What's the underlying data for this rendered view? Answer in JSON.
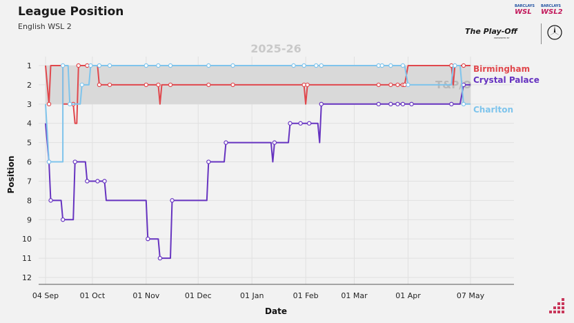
{
  "header": {
    "title": "League Position",
    "subtitle": "English WSL 2"
  },
  "logos": {
    "wsl": "WSL",
    "wsl2": "WSL2",
    "sponsor": "BARCLAYS",
    "playoff": "The Play-Off",
    "playoff_sub": "PRESENTED BY"
  },
  "colors": {
    "birmingham": "#e0474c",
    "crystal_palace": "#6633c0",
    "charlton": "#7ec4ec",
    "background": "#f2f2f2",
    "band": "#d9d9d9"
  },
  "chart_data": {
    "type": "line",
    "season_label": "2025-26",
    "band_label": "T&P/O",
    "xlabel": "Date",
    "ylabel": "Position",
    "ylim": [
      1,
      12
    ],
    "y_inverted": true,
    "xlim": [
      "2025-09-04",
      "2026-05-07"
    ],
    "x_ticks": [
      {
        "date": "2025-09-04",
        "label": "04 Sep"
      },
      {
        "date": "2025-10-01",
        "label": "01 Oct"
      },
      {
        "date": "2025-11-01",
        "label": "01 Nov"
      },
      {
        "date": "2025-12-01",
        "label": "01 Dec"
      },
      {
        "date": "2026-01-01",
        "label": "01 Jan"
      },
      {
        "date": "2026-02-01",
        "label": "01 Feb"
      },
      {
        "date": "2026-03-01",
        "label": "01 Mar"
      },
      {
        "date": "2026-04-01",
        "label": "01 Apr"
      },
      {
        "date": "2026-05-07",
        "label": "07 May"
      }
    ],
    "y_ticks": [
      "1",
      "2",
      "3",
      "4",
      "5",
      "6",
      "7",
      "8",
      "9",
      "10",
      "11",
      "12"
    ],
    "band": [
      1,
      3
    ],
    "series": [
      {
        "name": "Birmingham",
        "color": "#e0474c",
        "points": [
          [
            "2025-09-04",
            1
          ],
          [
            "2025-09-06",
            3
          ],
          [
            "2025-09-07",
            1
          ],
          [
            "2025-09-13",
            1
          ],
          [
            "2025-09-14",
            1
          ],
          [
            "2025-09-14",
            1
          ],
          [
            "2025-09-14",
            1
          ],
          [
            "2025-09-14",
            1
          ],
          [
            "2025-09-14",
            1
          ],
          [
            "2025-09-14",
            3
          ],
          [
            "2025-09-20",
            3
          ],
          [
            "2025-09-21",
            4
          ],
          [
            "2025-09-22",
            4
          ],
          [
            "2025-09-23",
            1
          ],
          [
            "2025-09-28",
            1
          ],
          [
            "2025-10-04",
            1
          ],
          [
            "2025-10-05",
            2
          ],
          [
            "2025-10-11",
            2
          ],
          [
            "2025-11-01",
            2
          ],
          [
            "2025-11-08",
            2
          ],
          [
            "2025-11-09",
            3
          ],
          [
            "2025-11-10",
            2
          ],
          [
            "2025-11-15",
            2
          ],
          [
            "2025-12-07",
            2
          ],
          [
            "2025-12-21",
            2
          ],
          [
            "2026-01-25",
            2
          ],
          [
            "2026-01-31",
            2
          ],
          [
            "2026-02-01",
            3
          ],
          [
            "2026-02-02",
            2
          ],
          [
            "2026-03-15",
            2
          ],
          [
            "2026-03-22",
            2
          ],
          [
            "2026-03-26",
            2
          ],
          [
            "2026-03-29",
            2
          ],
          [
            "2026-03-30",
            2
          ],
          [
            "2026-04-01",
            1
          ],
          [
            "2026-04-26",
            1
          ],
          [
            "2026-04-27",
            2
          ],
          [
            "2026-04-28",
            1
          ],
          [
            "2026-05-03",
            1
          ],
          [
            "2026-05-07",
            1
          ]
        ],
        "markers": [
          "2025-09-06",
          "2025-09-20",
          "2025-09-23",
          "2025-09-28",
          "2025-10-05",
          "2025-10-11",
          "2025-11-01",
          "2025-11-08",
          "2025-11-15",
          "2025-12-07",
          "2025-12-21",
          "2026-01-31",
          "2026-02-02",
          "2026-03-15",
          "2026-03-22",
          "2026-03-26",
          "2026-03-29",
          "2026-03-30",
          "2026-04-26",
          "2026-05-03"
        ],
        "end_label": "Birmingham"
      },
      {
        "name": "Crystal Palace",
        "color": "#6633c0",
        "points": [
          [
            "2025-09-04",
            4
          ],
          [
            "2025-09-06",
            6
          ],
          [
            "2025-09-07",
            8
          ],
          [
            "2025-09-13",
            8
          ],
          [
            "2025-09-14",
            9
          ],
          [
            "2025-09-20",
            9
          ],
          [
            "2025-09-21",
            6
          ],
          [
            "2025-09-27",
            6
          ],
          [
            "2025-09-28",
            7
          ],
          [
            "2025-10-04",
            7
          ],
          [
            "2025-10-08",
            7
          ],
          [
            "2025-10-09",
            8
          ],
          [
            "2025-11-01",
            8
          ],
          [
            "2025-11-02",
            10
          ],
          [
            "2025-11-08",
            10
          ],
          [
            "2025-11-09",
            11
          ],
          [
            "2025-11-15",
            11
          ],
          [
            "2025-11-16",
            8
          ],
          [
            "2025-12-06",
            8
          ],
          [
            "2025-12-07",
            6
          ],
          [
            "2025-12-16",
            6
          ],
          [
            "2025-12-17",
            5
          ],
          [
            "2026-01-12",
            5
          ],
          [
            "2026-01-13",
            6
          ],
          [
            "2026-01-14",
            5
          ],
          [
            "2026-01-22",
            5
          ],
          [
            "2026-01-23",
            4
          ],
          [
            "2026-02-08",
            4
          ],
          [
            "2026-02-09",
            5
          ],
          [
            "2026-02-10",
            3
          ],
          [
            "2026-03-15",
            3
          ],
          [
            "2026-03-22",
            3
          ],
          [
            "2026-03-26",
            3
          ],
          [
            "2026-03-29",
            3
          ],
          [
            "2026-03-30",
            3
          ],
          [
            "2026-04-03",
            3
          ],
          [
            "2026-04-26",
            3
          ],
          [
            "2026-05-01",
            3
          ],
          [
            "2026-05-03",
            2
          ],
          [
            "2026-05-07",
            2
          ]
        ],
        "markers": [
          "2025-09-06",
          "2025-09-07",
          "2025-09-14",
          "2025-09-21",
          "2025-09-28",
          "2025-10-04",
          "2025-10-08",
          "2025-11-02",
          "2025-11-09",
          "2025-11-16",
          "2025-12-07",
          "2025-12-17",
          "2026-01-14",
          "2026-01-23",
          "2026-01-29",
          "2026-02-03",
          "2026-02-10",
          "2026-03-15",
          "2026-03-22",
          "2026-03-26",
          "2026-03-29",
          "2026-04-03",
          "2026-04-26",
          "2026-05-03"
        ],
        "end_label": "Crystal Palace"
      },
      {
        "name": "Charlton",
        "color": "#7ec4ec",
        "points": [
          [
            "2025-09-04",
            3
          ],
          [
            "2025-09-06",
            6
          ],
          [
            "2025-09-07",
            6
          ],
          [
            "2025-09-14",
            6
          ],
          [
            "2025-09-14",
            1
          ],
          [
            "2025-09-17",
            1
          ],
          [
            "2025-09-18",
            3
          ],
          [
            "2025-09-24",
            3
          ],
          [
            "2025-09-25",
            2
          ],
          [
            "2025-09-29",
            2
          ],
          [
            "2025-09-30",
            1
          ],
          [
            "2025-10-05",
            1
          ],
          [
            "2025-10-11",
            1
          ],
          [
            "2025-11-01",
            1
          ],
          [
            "2025-11-08",
            1
          ],
          [
            "2025-11-15",
            1
          ],
          [
            "2025-12-07",
            1
          ],
          [
            "2025-12-21",
            1
          ],
          [
            "2026-01-25",
            1
          ],
          [
            "2026-01-31",
            1
          ],
          [
            "2026-02-07",
            1
          ],
          [
            "2026-02-08",
            1
          ],
          [
            "2026-02-10",
            1
          ],
          [
            "2026-03-15",
            1
          ],
          [
            "2026-03-17",
            1
          ],
          [
            "2026-03-22",
            1
          ],
          [
            "2026-03-29",
            1
          ],
          [
            "2026-03-30",
            1
          ],
          [
            "2026-04-01",
            2
          ],
          [
            "2026-04-26",
            2
          ],
          [
            "2026-04-27",
            1
          ],
          [
            "2026-04-28",
            1
          ],
          [
            "2026-05-01",
            1
          ],
          [
            "2026-05-03",
            3
          ],
          [
            "2026-05-07",
            3
          ]
        ],
        "markers": [
          "2025-09-06",
          "2025-09-14",
          "2025-09-18",
          "2025-09-25",
          "2025-09-30",
          "2025-10-05",
          "2025-10-11",
          "2025-11-01",
          "2025-11-08",
          "2025-11-15",
          "2025-12-07",
          "2025-12-21",
          "2026-01-25",
          "2026-01-31",
          "2026-02-07",
          "2026-02-10",
          "2026-03-15",
          "2026-03-17",
          "2026-03-22",
          "2026-03-29",
          "2026-04-01",
          "2026-04-28",
          "2026-05-03"
        ],
        "end_label": "Charlton"
      }
    ]
  }
}
